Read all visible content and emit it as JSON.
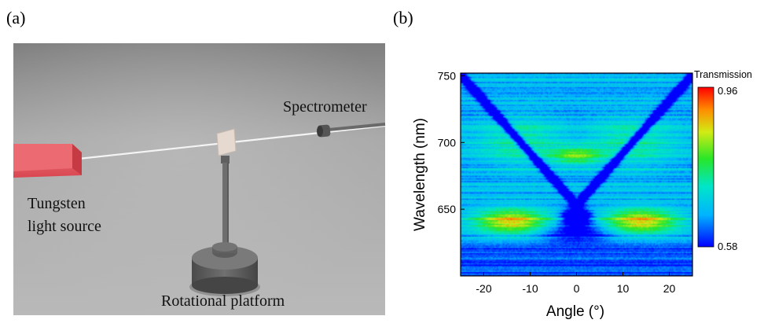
{
  "panel_a": {
    "label": "(a)",
    "tungsten_label_line1": "Tungsten",
    "tungsten_label_line2": "light source",
    "spectrometer_label": "Spectrometer",
    "platform_label": "Rotational platform"
  },
  "panel_b": {
    "label": "(b)"
  },
  "chart_data": {
    "type": "heatmap",
    "xlabel": "Angle (°)",
    "ylabel": "Wavelength (nm)",
    "xlim": [
      -25,
      25
    ],
    "ylim": [
      600,
      752
    ],
    "x_ticks": [
      -20,
      -10,
      0,
      10,
      20
    ],
    "y_ticks": [
      650,
      700,
      750
    ],
    "colorbar": {
      "title": "Transmission",
      "max_label": "0.96",
      "min_label": "0.58",
      "min": 0.58,
      "max": 0.96
    }
  },
  "colors": {
    "background": "#ffffff",
    "floor": "#9c9c9c",
    "source": "#e8565f",
    "beam": "#f2f2f2"
  }
}
